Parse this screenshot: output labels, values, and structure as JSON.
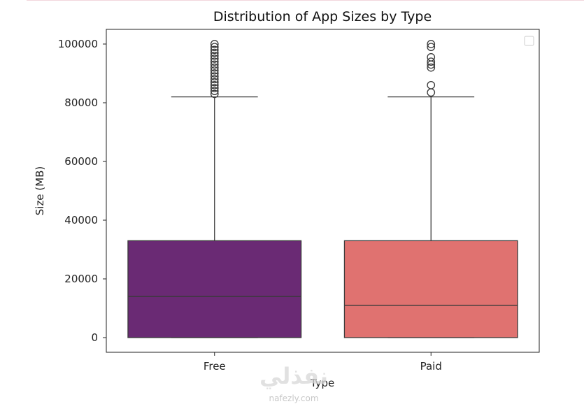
{
  "chart_data": {
    "type": "box",
    "title": "Distribution of App Sizes by Type",
    "xlabel": "Type",
    "ylabel": "Size (MB)",
    "categories": [
      "Free",
      "Paid"
    ],
    "ylim": [
      -5000,
      105000
    ],
    "yticks": [
      0,
      20000,
      40000,
      60000,
      80000,
      100000
    ],
    "ytick_labels": [
      "0",
      "20000",
      "40000",
      "60000",
      "80000",
      "100000"
    ],
    "legend": "empty, top-right",
    "boxes": [
      {
        "category": "Free",
        "color": "#6a2a74",
        "whisker_low": 0,
        "q1": 0,
        "median": 14000,
        "q3": 33000,
        "whisker_high": 82000,
        "outliers": [
          83000,
          84000,
          85000,
          86000,
          87000,
          88000,
          89000,
          90000,
          91000,
          92000,
          93000,
          94000,
          95000,
          96000,
          97000,
          98000,
          99000,
          100000
        ]
      },
      {
        "category": "Paid",
        "color": "#e07270",
        "whisker_low": 0,
        "q1": 0,
        "median": 11000,
        "q3": 33000,
        "whisker_high": 82000,
        "outliers": [
          83500,
          86000,
          92000,
          93000,
          94000,
          95500,
          99000,
          100000
        ]
      }
    ],
    "grid": false
  },
  "watermark": {
    "arabic": "نفذلي",
    "url": "nafezly.com"
  },
  "colors": {
    "line": "#3a3a3a",
    "axis": "#222222"
  }
}
